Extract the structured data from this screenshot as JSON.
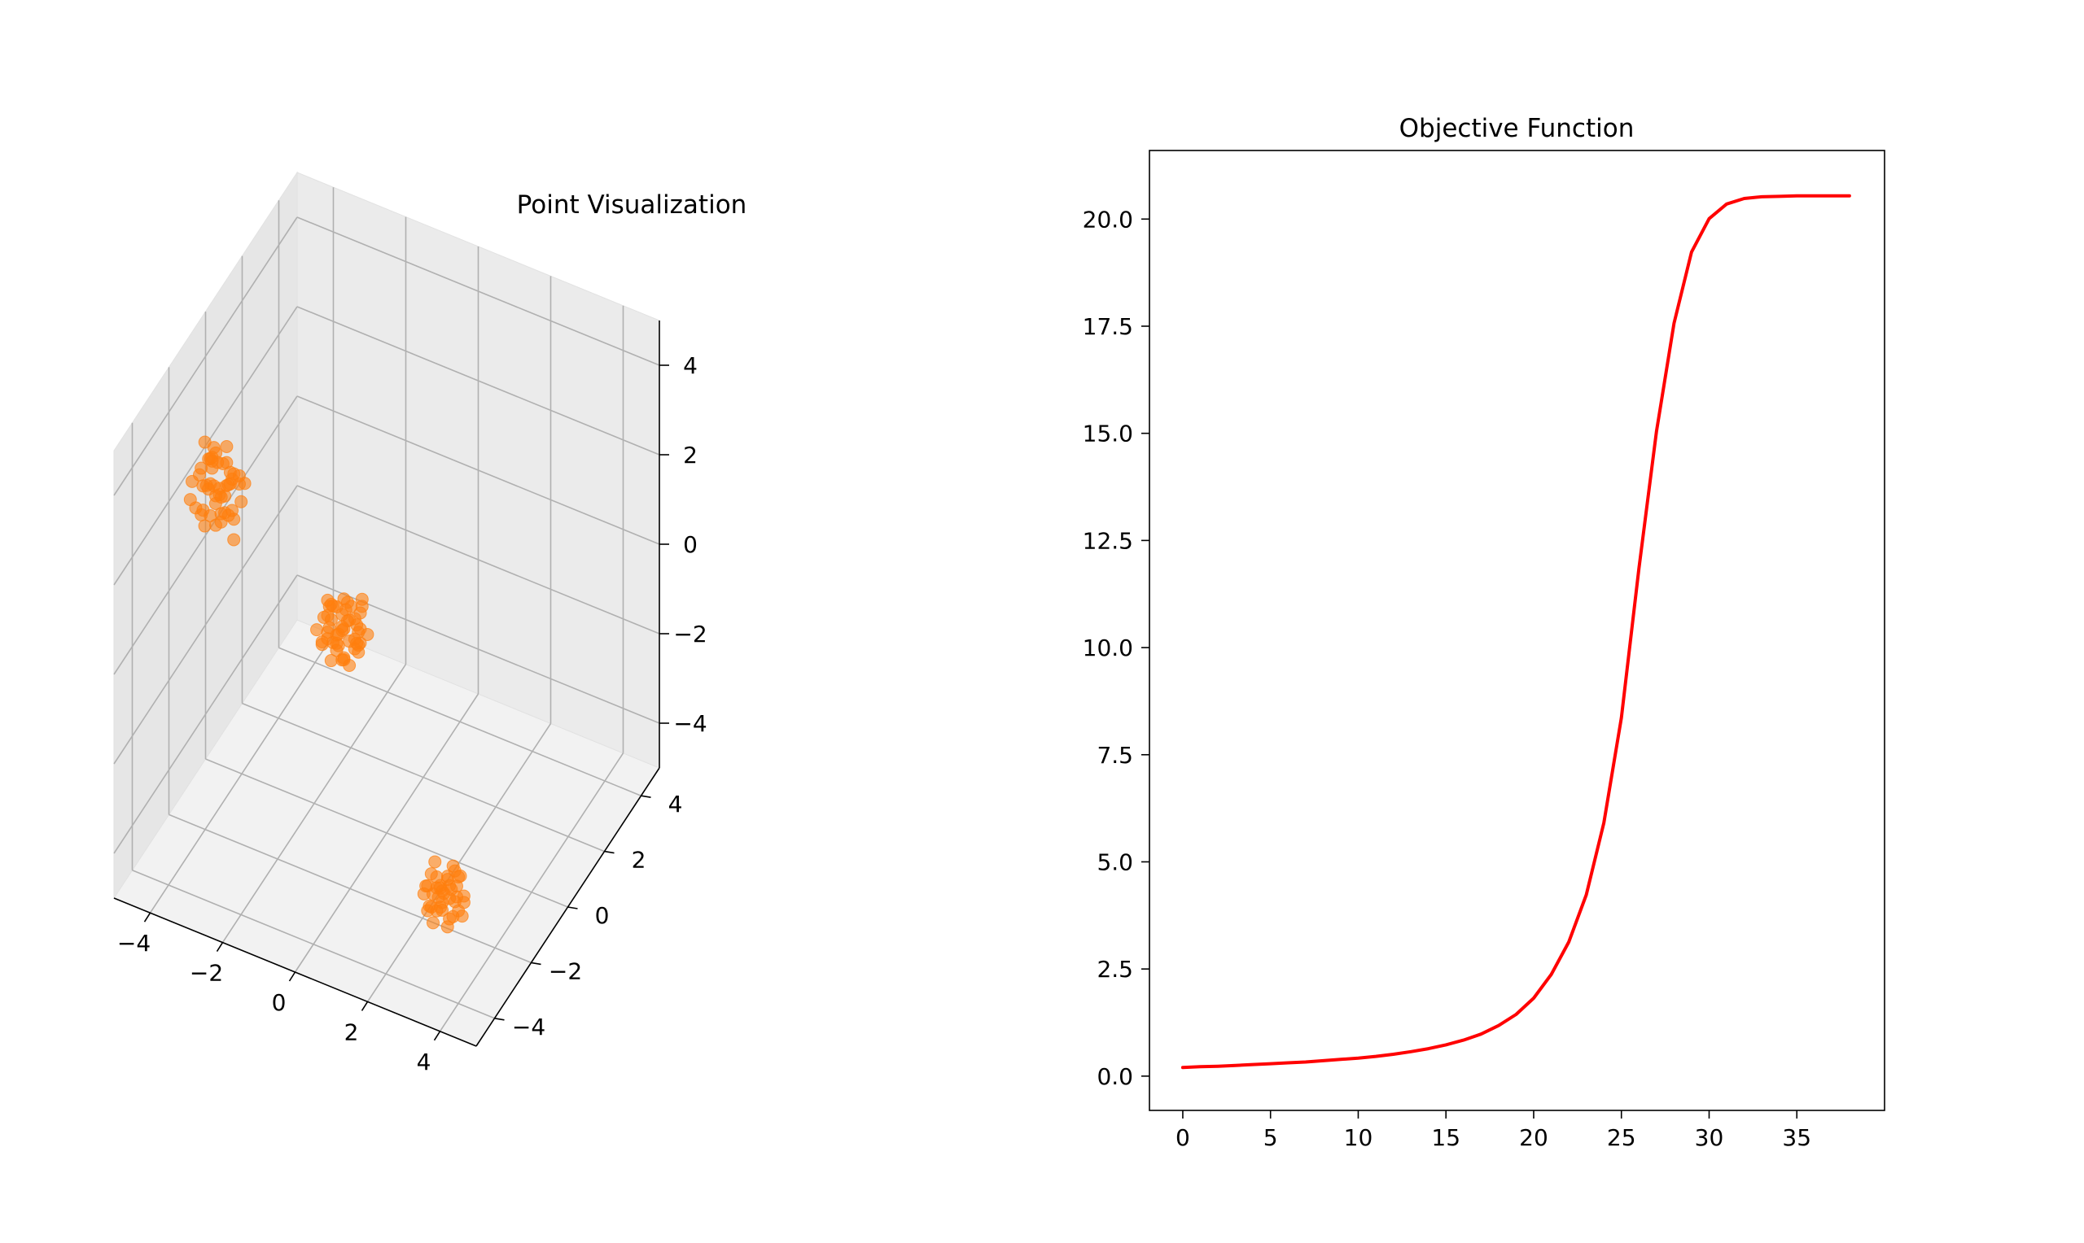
{
  "chart_data": [
    {
      "type": "scatter",
      "dimensions": 3,
      "title": "Point Visualization",
      "color": "#ff7f0e",
      "grid": true,
      "xlim": [
        -5,
        5
      ],
      "ylim": [
        -5,
        5
      ],
      "zlim": [
        -5,
        5
      ],
      "x_ticks": [
        "−4",
        "−2",
        "0",
        "2",
        "4"
      ],
      "y_ticks": [
        "−4",
        "−2",
        "0",
        "2",
        "4"
      ],
      "z_ticks": [
        "−4",
        "−2",
        "0",
        "2",
        "4"
      ],
      "series": [
        {
          "points": [
            [
              -3.0,
              -3.6,
              4.4
            ],
            [
              -2.6,
              -3.3,
              4.1
            ],
            [
              -3.3,
              -3.9,
              3.6
            ],
            [
              -2.8,
              -3.5,
              3.2
            ],
            [
              -2.5,
              -3.1,
              3.9
            ],
            [
              -3.4,
              -3.2,
              4.6
            ],
            [
              -2.9,
              -3.8,
              4.8
            ],
            [
              -3.1,
              -3.0,
              3.4
            ],
            [
              -2.4,
              -3.6,
              3.0
            ],
            [
              -3.5,
              -3.7,
              4.0
            ],
            [
              -2.7,
              -3.4,
              4.5
            ],
            [
              -3.2,
              -3.3,
              3.8
            ],
            [
              -2.9,
              -3.1,
              3.5
            ],
            [
              -3.0,
              -3.9,
              4.2
            ],
            [
              -2.6,
              -3.7,
              3.6
            ],
            [
              -3.3,
              -3.5,
              3.3
            ],
            [
              -2.8,
              -3.2,
              4.7
            ],
            [
              -3.1,
              -3.6,
              3.9
            ],
            [
              -2.5,
              -3.8,
              4.3
            ],
            [
              -3.4,
              -3.4,
              3.1
            ],
            [
              -2.7,
              -3.0,
              4.0
            ],
            [
              -3.0,
              -3.2,
              3.7
            ],
            [
              -2.3,
              -3.5,
              4.4
            ],
            [
              -3.6,
              -3.6,
              3.5
            ],
            [
              -2.9,
              -3.7,
              4.1
            ],
            [
              -3.2,
              -3.0,
              4.3
            ],
            [
              -2.6,
              -3.3,
              3.4
            ],
            [
              -3.0,
              -3.4,
              3.0
            ],
            [
              -2.8,
              -3.8,
              3.8
            ],
            [
              -3.3,
              -3.1,
              4.2
            ],
            [
              -2.4,
              -3.2,
              3.6
            ],
            [
              -3.1,
              -3.8,
              3.2
            ],
            [
              -2.7,
              -3.6,
              4.6
            ],
            [
              -3.5,
              -3.3,
              3.9
            ],
            [
              -2.9,
              -3.5,
              4.5
            ],
            [
              -2.5,
              -3.4,
              3.3
            ],
            [
              -3.2,
              -3.7,
              4.0
            ],
            [
              -2.8,
              -3.1,
              3.1
            ],
            [
              -3.0,
              -3.5,
              4.8
            ],
            [
              -2.6,
              -3.9,
              3.7
            ],
            [
              -3.4,
              -3.0,
              4.1
            ],
            [
              -2.9,
              -3.3,
              3.6
            ],
            [
              -3.1,
              -3.4,
              4.4
            ],
            [
              -2.7,
              -3.2,
              3.9
            ],
            [
              -3.0,
              -3.7,
              3.4
            ],
            [
              -2.2,
              -3.4,
              4.2
            ],
            [
              -3.3,
              -3.6,
              4.3
            ],
            [
              -2.8,
              -3.0,
              4.0
            ],
            [
              -3.1,
              -3.2,
              3.5
            ],
            [
              -2.6,
              -3.5,
              4.1
            ]
          ]
        },
        {
          "points": [
            [
              -3.0,
              3.3,
              -3.6
            ],
            [
              -2.6,
              3.6,
              -3.9
            ],
            [
              -3.3,
              3.1,
              -3.2
            ],
            [
              -2.8,
              3.8,
              -3.5
            ],
            [
              -3.5,
              3.4,
              -4.0
            ],
            [
              -2.4,
              3.2,
              -3.3
            ],
            [
              -3.1,
              3.7,
              -3.8
            ],
            [
              -2.9,
              3.0,
              -3.4
            ],
            [
              -3.4,
              3.5,
              -3.1
            ],
            [
              -2.7,
              3.3,
              -4.2
            ],
            [
              -3.2,
              3.9,
              -3.6
            ],
            [
              -2.5,
              3.6,
              -3.0
            ],
            [
              -3.0,
              3.2,
              -3.9
            ],
            [
              -2.8,
              3.4,
              -3.3
            ],
            [
              -3.6,
              3.3,
              -3.7
            ],
            [
              -2.9,
              3.7,
              -3.5
            ],
            [
              -3.1,
              3.1,
              -4.1
            ],
            [
              -2.6,
              3.5,
              -3.8
            ],
            [
              -3.3,
              3.8,
              -3.4
            ],
            [
              -2.7,
              3.0,
              -3.2
            ],
            [
              -3.0,
              3.6,
              -3.0
            ],
            [
              -2.4,
              3.3,
              -3.6
            ],
            [
              -3.4,
              3.2,
              -3.9
            ],
            [
              -2.8,
              3.9,
              -3.7
            ],
            [
              -3.2,
              3.4,
              -3.1
            ],
            [
              -2.6,
              3.1,
              -3.5
            ],
            [
              -3.0,
              3.5,
              -4.3
            ],
            [
              -2.9,
              3.3,
              -3.4
            ],
            [
              -3.5,
              3.7,
              -3.6
            ],
            [
              -2.5,
              3.4,
              -3.9
            ],
            [
              -3.1,
              3.0,
              -3.3
            ],
            [
              -2.7,
              3.6,
              -3.8
            ],
            [
              -3.3,
              3.5,
              -3.5
            ],
            [
              -2.8,
              3.2,
              -4.0
            ],
            [
              -3.0,
              3.8,
              -3.2
            ],
            [
              -2.6,
              3.7,
              -3.6
            ],
            [
              -3.2,
              3.3,
              -3.0
            ],
            [
              -2.9,
              3.1,
              -3.7
            ],
            [
              -3.4,
              3.6,
              -3.3
            ],
            [
              -2.3,
              3.5,
              -3.5
            ],
            [
              -3.1,
              3.4,
              -3.9
            ],
            [
              -2.7,
              3.9,
              -3.4
            ],
            [
              -3.0,
              3.0,
              -3.6
            ],
            [
              -2.8,
              3.6,
              -3.1
            ],
            [
              -3.3,
              3.3,
              -3.8
            ],
            [
              -2.5,
              3.2,
              -3.7
            ],
            [
              -3.0,
              3.7,
              -3.3
            ],
            [
              -2.9,
              3.4,
              -4.2
            ],
            [
              -3.2,
              3.1,
              -3.5
            ],
            [
              -2.6,
              3.8,
              -3.0
            ]
          ]
        },
        {
          "points": [
            [
              3.2,
              -3.2,
              -3.3
            ],
            [
              3.5,
              -2.9,
              -3.0
            ],
            [
              2.9,
              -3.5,
              -3.6
            ],
            [
              3.4,
              -3.4,
              -2.8
            ],
            [
              3.0,
              -3.0,
              -3.8
            ],
            [
              3.7,
              -3.1,
              -3.4
            ],
            [
              3.1,
              -3.6,
              -3.1
            ],
            [
              3.3,
              -2.8,
              -3.7
            ],
            [
              2.8,
              -3.3,
              -3.2
            ],
            [
              3.6,
              -3.5,
              -3.5
            ],
            [
              3.2,
              -2.7,
              -3.0
            ],
            [
              3.0,
              -3.4,
              -3.9
            ],
            [
              3.5,
              -3.2,
              -2.7
            ],
            [
              2.9,
              -3.0,
              -3.4
            ],
            [
              3.4,
              -3.7,
              -3.3
            ],
            [
              3.1,
              -3.1,
              -3.6
            ],
            [
              3.8,
              -3.3,
              -3.1
            ],
            [
              3.0,
              -2.9,
              -3.5
            ],
            [
              3.3,
              -3.6,
              -2.9
            ],
            [
              2.7,
              -3.2,
              -3.3
            ],
            [
              3.6,
              -3.0,
              -3.8
            ],
            [
              3.2,
              -3.4,
              -3.0
            ],
            [
              3.0,
              -3.3,
              -2.6
            ],
            [
              3.5,
              -3.6,
              -3.7
            ],
            [
              3.1,
              -2.8,
              -3.2
            ],
            [
              3.3,
              -3.1,
              -3.9
            ],
            [
              2.9,
              -3.7,
              -3.1
            ],
            [
              3.7,
              -3.4,
              -3.4
            ],
            [
              3.0,
              -3.2,
              -3.0
            ],
            [
              3.4,
              -2.9,
              -3.5
            ],
            [
              3.2,
              -3.5,
              -3.2
            ],
            [
              2.8,
              -3.1,
              -3.8
            ],
            [
              3.6,
              -3.2,
              -2.8
            ],
            [
              3.1,
              -3.4,
              -3.6
            ],
            [
              3.3,
              -3.0,
              -3.3
            ],
            [
              3.0,
              -3.6,
              -3.4
            ],
            [
              3.5,
              -3.1,
              -3.1
            ],
            [
              2.9,
              -3.3,
              -2.9
            ],
            [
              3.2,
              -2.9,
              -3.6
            ],
            [
              3.4,
              -3.3,
              -3.0
            ]
          ]
        }
      ]
    },
    {
      "type": "line",
      "title": "Objective Function",
      "color": "#ff0000",
      "grid": false,
      "xlim": [
        -1.9,
        40.0
      ],
      "ylim": [
        -0.8,
        21.6
      ],
      "x_ticks": [
        0,
        5,
        10,
        15,
        20,
        25,
        30,
        35
      ],
      "x_tick_labels": [
        "0",
        "5",
        "10",
        "15",
        "20",
        "25",
        "30",
        "35"
      ],
      "y_ticks": [
        0,
        2.5,
        5,
        7.5,
        10,
        12.5,
        15,
        17.5,
        20
      ],
      "y_tick_labels": [
        "0.0",
        "2.5",
        "5.0",
        "7.5",
        "10.0",
        "12.5",
        "15.0",
        "17.5",
        "20.0"
      ],
      "x": [
        0,
        1,
        2,
        3,
        4,
        5,
        6,
        7,
        8,
        9,
        10,
        11,
        12,
        13,
        14,
        15,
        16,
        17,
        18,
        19,
        20,
        21,
        22,
        23,
        24,
        25,
        26,
        27,
        28,
        29,
        30,
        31,
        32,
        33,
        34,
        35,
        36,
        37,
        38
      ],
      "y": [
        0.2,
        0.22,
        0.23,
        0.25,
        0.27,
        0.29,
        0.31,
        0.33,
        0.36,
        0.39,
        0.42,
        0.46,
        0.51,
        0.57,
        0.64,
        0.73,
        0.84,
        0.98,
        1.18,
        1.44,
        1.82,
        2.37,
        3.13,
        4.23,
        5.91,
        8.36,
        11.85,
        15.04,
        17.57,
        19.23,
        20.01,
        20.35,
        20.48,
        20.52,
        20.53,
        20.54,
        20.54,
        20.54,
        20.54
      ]
    }
  ]
}
